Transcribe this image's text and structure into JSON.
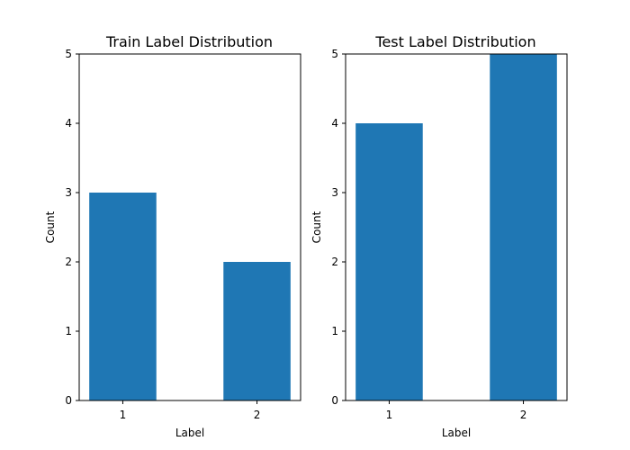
{
  "chart_data": [
    {
      "type": "bar",
      "title": "Train Label Distribution",
      "xlabel": "Label",
      "ylabel": "Count",
      "categories": [
        "1",
        "2"
      ],
      "values": [
        3,
        2
      ],
      "ylim": [
        0,
        5
      ],
      "yticks": [
        "0",
        "1",
        "2",
        "3",
        "4",
        "5"
      ],
      "color": "#1f77b4",
      "grid": false
    },
    {
      "type": "bar",
      "title": "Test Label Distribution",
      "xlabel": "Label",
      "ylabel": "Count",
      "categories": [
        "1",
        "2"
      ],
      "values": [
        4,
        5
      ],
      "ylim": [
        0,
        5
      ],
      "yticks": [
        "0",
        "1",
        "2",
        "3",
        "4",
        "5"
      ],
      "color": "#1f77b4",
      "grid": false
    }
  ]
}
